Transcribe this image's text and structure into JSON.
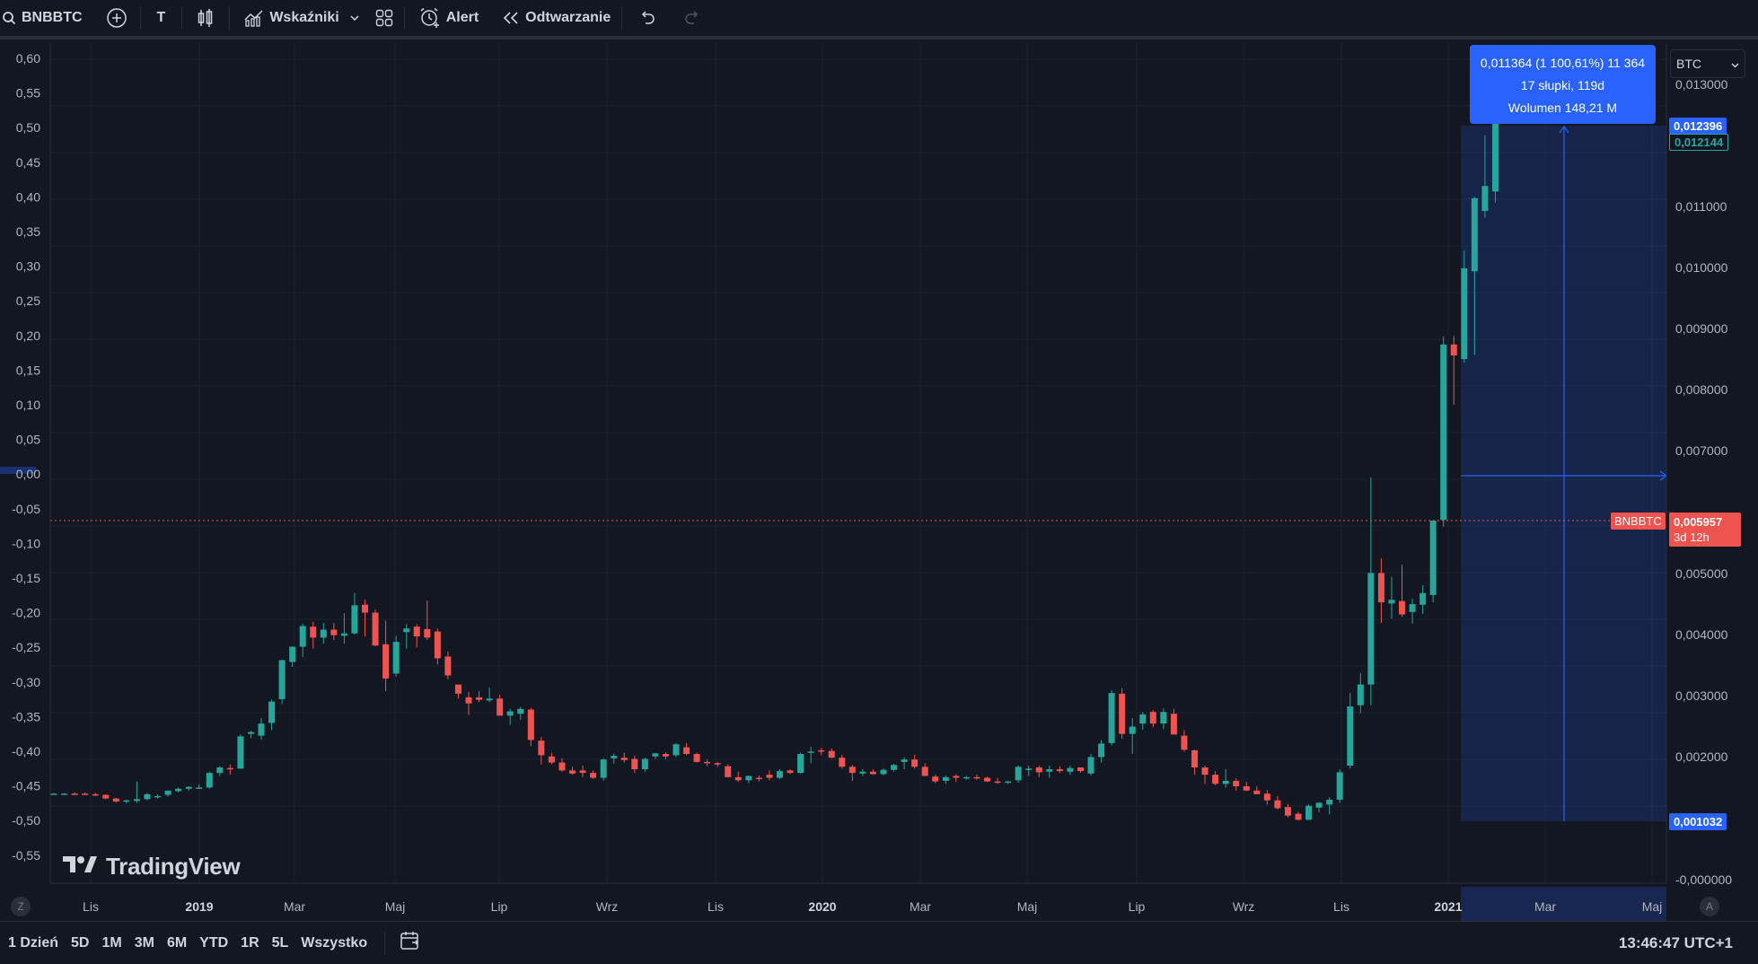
{
  "toolbar": {
    "symbol": "BNBBTC",
    "text_tool": "T",
    "indicators": "Wskaźniki",
    "alert": "Alert",
    "replay": "Odtwarzanie"
  },
  "left_axis": {
    "ticks": [
      "0,60",
      "0,55",
      "0,50",
      "0,45",
      "0,40",
      "0,35",
      "0,30",
      "0,25",
      "0,20",
      "0,15",
      "0,10",
      "0,05",
      "0,00",
      "-0,05",
      "-0,10",
      "-0,15",
      "-0,20",
      "-0,25",
      "-0,30",
      "-0,35",
      "-0,40",
      "-0,45",
      "-0,50",
      "-0,55"
    ]
  },
  "right_axis": {
    "currency": "BTC",
    "ticks": [
      "0,013000",
      "0,011000",
      "0,010000",
      "0,009000",
      "0,008000",
      "0,007000",
      "0,005000",
      "0,004000",
      "0,003000",
      "0,002000",
      "-0,000000"
    ],
    "labels": {
      "top": "0,012396",
      "last": "0,012144",
      "symbol": "BNBBTC",
      "current": "0,005957",
      "countdown": "3d 12h",
      "bottom": "0,001032"
    }
  },
  "measurement": {
    "line1": "0,011364 (1 100,61%) 11 364",
    "line2": "17 słupki, 119d",
    "line3": "Wolumen 148,21 M"
  },
  "time_axis": {
    "labels": [
      "Lis",
      "2019",
      "Mar",
      "Maj",
      "Lip",
      "Wrz",
      "Lis",
      "2020",
      "Mar",
      "Maj",
      "Lip",
      "Wrz",
      "Lis",
      "2021",
      "Mar",
      "Maj"
    ],
    "bold": [
      "2019",
      "2020",
      "2021"
    ],
    "left_button": "Z",
    "right_button": "A"
  },
  "logo_text": "TradingView",
  "bottom_bar": {
    "ranges": [
      "1 Dzień",
      "5D",
      "1M",
      "3M",
      "6M",
      "YTD",
      "1R",
      "5L",
      "Wszystko"
    ],
    "time": "13:46:47 UTC+1"
  },
  "colors": {
    "background": "#131722",
    "up": "#26a69a",
    "down": "#ef5350",
    "accent": "#2962ff",
    "grid": "#1e222d"
  },
  "chart_data": {
    "type": "candlestick",
    "interval": "weekly",
    "symbol": "BNBBTC",
    "y_unit": "BTC",
    "ylim": [
      0,
      0.0135
    ],
    "candles": [
      {
        "o": 0.00147,
        "h": 0.00148,
        "l": 0.00146,
        "c": 0.00147
      },
      {
        "o": 0.00147,
        "h": 0.00148,
        "l": 0.00146,
        "c": 0.00147
      },
      {
        "o": 0.00147,
        "h": 0.00149,
        "l": 0.00146,
        "c": 0.00146
      },
      {
        "o": 0.00147,
        "h": 0.00149,
        "l": 0.00145,
        "c": 0.00146
      },
      {
        "o": 0.00146,
        "h": 0.00148,
        "l": 0.00143,
        "c": 0.00144
      },
      {
        "o": 0.00145,
        "h": 0.00146,
        "l": 0.00138,
        "c": 0.00139
      },
      {
        "o": 0.00139,
        "h": 0.0014,
        "l": 0.00132,
        "c": 0.00134
      },
      {
        "o": 0.00134,
        "h": 0.00137,
        "l": 0.00131,
        "c": 0.00136
      },
      {
        "o": 0.00135,
        "h": 0.00167,
        "l": 0.00132,
        "c": 0.00138
      },
      {
        "o": 0.00138,
        "h": 0.00148,
        "l": 0.00136,
        "c": 0.00146
      },
      {
        "o": 0.00141,
        "h": 0.00146,
        "l": 0.00139,
        "c": 0.00143
      },
      {
        "o": 0.00145,
        "h": 0.00152,
        "l": 0.00142,
        "c": 0.00152
      },
      {
        "o": 0.00151,
        "h": 0.00157,
        "l": 0.00149,
        "c": 0.00155
      },
      {
        "o": 0.00155,
        "h": 0.00159,
        "l": 0.00152,
        "c": 0.00158
      },
      {
        "o": 0.00156,
        "h": 0.00162,
        "l": 0.00155,
        "c": 0.00157
      },
      {
        "o": 0.00157,
        "h": 0.00183,
        "l": 0.00155,
        "c": 0.00181
      },
      {
        "o": 0.00181,
        "h": 0.00192,
        "l": 0.00176,
        "c": 0.0019
      },
      {
        "o": 0.00189,
        "h": 0.00195,
        "l": 0.00178,
        "c": 0.00188
      },
      {
        "o": 0.00188,
        "h": 0.00244,
        "l": 0.00188,
        "c": 0.00241
      },
      {
        "o": 0.00245,
        "h": 0.0025,
        "l": 0.00238,
        "c": 0.00248
      },
      {
        "o": 0.00242,
        "h": 0.00271,
        "l": 0.00235,
        "c": 0.00262
      },
      {
        "o": 0.00263,
        "h": 0.00301,
        "l": 0.00251,
        "c": 0.00298
      },
      {
        "o": 0.00302,
        "h": 0.00367,
        "l": 0.00294,
        "c": 0.00366
      },
      {
        "o": 0.00363,
        "h": 0.00389,
        "l": 0.00355,
        "c": 0.00388
      },
      {
        "o": 0.00388,
        "h": 0.00426,
        "l": 0.00371,
        "c": 0.00422
      },
      {
        "o": 0.00421,
        "h": 0.00429,
        "l": 0.00385,
        "c": 0.00403
      },
      {
        "o": 0.00403,
        "h": 0.00427,
        "l": 0.00393,
        "c": 0.00416
      },
      {
        "o": 0.00416,
        "h": 0.00427,
        "l": 0.00399,
        "c": 0.00407
      },
      {
        "o": 0.00406,
        "h": 0.00443,
        "l": 0.00393,
        "c": 0.0041
      },
      {
        "o": 0.0041,
        "h": 0.00476,
        "l": 0.00408,
        "c": 0.00456
      },
      {
        "o": 0.00457,
        "h": 0.00465,
        "l": 0.00405,
        "c": 0.00444
      },
      {
        "o": 0.00444,
        "h": 0.00449,
        "l": 0.00389,
        "c": 0.0039
      },
      {
        "o": 0.00392,
        "h": 0.00431,
        "l": 0.00315,
        "c": 0.00336
      },
      {
        "o": 0.00344,
        "h": 0.00406,
        "l": 0.00339,
        "c": 0.00396
      },
      {
        "o": 0.00412,
        "h": 0.00425,
        "l": 0.00385,
        "c": 0.00418
      },
      {
        "o": 0.00421,
        "h": 0.00425,
        "l": 0.00387,
        "c": 0.00405
      },
      {
        "o": 0.00417,
        "h": 0.00464,
        "l": 0.00399,
        "c": 0.00403
      },
      {
        "o": 0.00413,
        "h": 0.00418,
        "l": 0.00359,
        "c": 0.00369
      },
      {
        "o": 0.00372,
        "h": 0.0038,
        "l": 0.00335,
        "c": 0.00341
      },
      {
        "o": 0.00326,
        "h": 0.00326,
        "l": 0.00303,
        "c": 0.00311
      },
      {
        "o": 0.00305,
        "h": 0.00314,
        "l": 0.00276,
        "c": 0.00295
      },
      {
        "o": 0.00305,
        "h": 0.00315,
        "l": 0.00297,
        "c": 0.00301
      },
      {
        "o": 0.003,
        "h": 0.00321,
        "l": 0.00297,
        "c": 0.00303
      },
      {
        "o": 0.00303,
        "h": 0.00309,
        "l": 0.00275,
        "c": 0.00275
      },
      {
        "o": 0.00275,
        "h": 0.00286,
        "l": 0.0026,
        "c": 0.00282
      },
      {
        "o": 0.00278,
        "h": 0.00289,
        "l": 0.00268,
        "c": 0.00286
      },
      {
        "o": 0.00285,
        "h": 0.00288,
        "l": 0.00225,
        "c": 0.00235
      },
      {
        "o": 0.00234,
        "h": 0.0024,
        "l": 0.00195,
        "c": 0.0021
      },
      {
        "o": 0.00208,
        "h": 0.00214,
        "l": 0.00195,
        "c": 0.00198
      },
      {
        "o": 0.00198,
        "h": 0.00205,
        "l": 0.00183,
        "c": 0.00185
      },
      {
        "o": 0.00185,
        "h": 0.00191,
        "l": 0.00178,
        "c": 0.0018
      },
      {
        "o": 0.00185,
        "h": 0.00193,
        "l": 0.00174,
        "c": 0.00181
      },
      {
        "o": 0.00181,
        "h": 0.00185,
        "l": 0.00171,
        "c": 0.00173
      },
      {
        "o": 0.00173,
        "h": 0.00205,
        "l": 0.00168,
        "c": 0.00203
      },
      {
        "o": 0.00205,
        "h": 0.00213,
        "l": 0.00196,
        "c": 0.00209
      },
      {
        "o": 0.00206,
        "h": 0.00214,
        "l": 0.00198,
        "c": 0.00202
      },
      {
        "o": 0.00204,
        "h": 0.00209,
        "l": 0.00181,
        "c": 0.00187
      },
      {
        "o": 0.00187,
        "h": 0.00206,
        "l": 0.00183,
        "c": 0.00204
      },
      {
        "o": 0.00208,
        "h": 0.00214,
        "l": 0.00204,
        "c": 0.00213
      },
      {
        "o": 0.00212,
        "h": 0.00215,
        "l": 0.00203,
        "c": 0.00208
      },
      {
        "o": 0.0021,
        "h": 0.0023,
        "l": 0.00207,
        "c": 0.00228
      },
      {
        "o": 0.00223,
        "h": 0.0023,
        "l": 0.0021,
        "c": 0.00212
      },
      {
        "o": 0.00212,
        "h": 0.00214,
        "l": 0.00198,
        "c": 0.00199
      },
      {
        "o": 0.00199,
        "h": 0.00203,
        "l": 0.00192,
        "c": 0.00197
      },
      {
        "o": 0.00197,
        "h": 0.00199,
        "l": 0.00191,
        "c": 0.00195
      },
      {
        "o": 0.00192,
        "h": 0.00195,
        "l": 0.00183,
        "c": 0.00174
      },
      {
        "o": 0.00174,
        "h": 0.00183,
        "l": 0.00166,
        "c": 0.00169
      },
      {
        "o": 0.00169,
        "h": 0.00177,
        "l": 0.00164,
        "c": 0.00176
      },
      {
        "o": 0.00173,
        "h": 0.00177,
        "l": 0.00167,
        "c": 0.00171
      },
      {
        "o": 0.00178,
        "h": 0.00185,
        "l": 0.00169,
        "c": 0.00173
      },
      {
        "o": 0.00173,
        "h": 0.00187,
        "l": 0.00171,
        "c": 0.00184
      },
      {
        "o": 0.00185,
        "h": 0.00187,
        "l": 0.00179,
        "c": 0.00181
      },
      {
        "o": 0.00181,
        "h": 0.00214,
        "l": 0.0018,
        "c": 0.00212
      },
      {
        "o": 0.00214,
        "h": 0.00224,
        "l": 0.00197,
        "c": 0.00216
      },
      {
        "o": 0.00218,
        "h": 0.00222,
        "l": 0.0021,
        "c": 0.00217
      },
      {
        "o": 0.00217,
        "h": 0.00221,
        "l": 0.00205,
        "c": 0.00206
      },
      {
        "o": 0.00206,
        "h": 0.00211,
        "l": 0.00188,
        "c": 0.00191
      },
      {
        "o": 0.00191,
        "h": 0.00194,
        "l": 0.00168,
        "c": 0.00181
      },
      {
        "o": 0.0018,
        "h": 0.00187,
        "l": 0.00176,
        "c": 0.00183
      },
      {
        "o": 0.00183,
        "h": 0.00187,
        "l": 0.00178,
        "c": 0.00179
      },
      {
        "o": 0.00179,
        "h": 0.00189,
        "l": 0.00177,
        "c": 0.00186
      },
      {
        "o": 0.00186,
        "h": 0.00196,
        "l": 0.00183,
        "c": 0.00194
      },
      {
        "o": 0.00199,
        "h": 0.00207,
        "l": 0.00187,
        "c": 0.00203
      },
      {
        "o": 0.00203,
        "h": 0.00211,
        "l": 0.00188,
        "c": 0.00191
      },
      {
        "o": 0.00191,
        "h": 0.00197,
        "l": 0.00176,
        "c": 0.00176
      },
      {
        "o": 0.00175,
        "h": 0.00178,
        "l": 0.00164,
        "c": 0.00167
      },
      {
        "o": 0.00168,
        "h": 0.00177,
        "l": 0.00163,
        "c": 0.00174
      },
      {
        "o": 0.00176,
        "h": 0.00179,
        "l": 0.00166,
        "c": 0.00173
      },
      {
        "o": 0.00173,
        "h": 0.00176,
        "l": 0.0017,
        "c": 0.00174
      },
      {
        "o": 0.00174,
        "h": 0.00178,
        "l": 0.0017,
        "c": 0.00173
      },
      {
        "o": 0.00173,
        "h": 0.00175,
        "l": 0.00166,
        "c": 0.00167
      },
      {
        "o": 0.00167,
        "h": 0.00173,
        "l": 0.00163,
        "c": 0.00166
      },
      {
        "o": 0.00165,
        "h": 0.00168,
        "l": 0.00163,
        "c": 0.00167
      },
      {
        "o": 0.00169,
        "h": 0.00193,
        "l": 0.00165,
        "c": 0.00191
      },
      {
        "o": 0.00187,
        "h": 0.00193,
        "l": 0.00176,
        "c": 0.00188
      },
      {
        "o": 0.0019,
        "h": 0.00193,
        "l": 0.00174,
        "c": 0.00182
      },
      {
        "o": 0.00183,
        "h": 0.00193,
        "l": 0.00173,
        "c": 0.00187
      },
      {
        "o": 0.00187,
        "h": 0.00192,
        "l": 0.00181,
        "c": 0.00184
      },
      {
        "o": 0.00183,
        "h": 0.00193,
        "l": 0.00178,
        "c": 0.00189
      },
      {
        "o": 0.0019,
        "h": 0.0019,
        "l": 0.00181,
        "c": 0.00184
      },
      {
        "o": 0.0018,
        "h": 0.00212,
        "l": 0.00177,
        "c": 0.00207
      },
      {
        "o": 0.00207,
        "h": 0.00235,
        "l": 0.00198,
        "c": 0.00229
      },
      {
        "o": 0.0023,
        "h": 0.00317,
        "l": 0.00226,
        "c": 0.00312
      },
      {
        "o": 0.00311,
        "h": 0.0032,
        "l": 0.00237,
        "c": 0.00245
      },
      {
        "o": 0.00245,
        "h": 0.00271,
        "l": 0.00212,
        "c": 0.00257
      },
      {
        "o": 0.00262,
        "h": 0.00281,
        "l": 0.00252,
        "c": 0.00277
      },
      {
        "o": 0.00281,
        "h": 0.00284,
        "l": 0.00256,
        "c": 0.00262
      },
      {
        "o": 0.00262,
        "h": 0.00287,
        "l": 0.00253,
        "c": 0.00281
      },
      {
        "o": 0.00278,
        "h": 0.00286,
        "l": 0.00246,
        "c": 0.00244
      },
      {
        "o": 0.00242,
        "h": 0.00251,
        "l": 0.00216,
        "c": 0.00219
      },
      {
        "o": 0.00218,
        "h": 0.00219,
        "l": 0.00178,
        "c": 0.0019
      },
      {
        "o": 0.0019,
        "h": 0.00193,
        "l": 0.00163,
        "c": 0.00178
      },
      {
        "o": 0.00178,
        "h": 0.00184,
        "l": 0.00161,
        "c": 0.00163
      },
      {
        "o": 0.00163,
        "h": 0.00187,
        "l": 0.00157,
        "c": 0.00168
      },
      {
        "o": 0.00168,
        "h": 0.00172,
        "l": 0.00152,
        "c": 0.00159
      },
      {
        "o": 0.00159,
        "h": 0.00166,
        "l": 0.00151,
        "c": 0.00152
      },
      {
        "o": 0.00152,
        "h": 0.00159,
        "l": 0.00146,
        "c": 0.00146
      },
      {
        "o": 0.00147,
        "h": 0.00153,
        "l": 0.00129,
        "c": 0.00136
      },
      {
        "o": 0.00136,
        "h": 0.00143,
        "l": 0.00121,
        "c": 0.00123
      },
      {
        "o": 0.00125,
        "h": 0.0013,
        "l": 0.00108,
        "c": 0.00111
      },
      {
        "o": 0.00114,
        "h": 0.00117,
        "l": 0.00103,
        "c": 0.00104
      },
      {
        "o": 0.00104,
        "h": 0.0013,
        "l": 0.00104,
        "c": 0.00127
      },
      {
        "o": 0.00124,
        "h": 0.00133,
        "l": 0.00117,
        "c": 0.00132
      },
      {
        "o": 0.00129,
        "h": 0.00141,
        "l": 0.00113,
        "c": 0.00137
      },
      {
        "o": 0.00137,
        "h": 0.00187,
        "l": 0.00132,
        "c": 0.00182
      },
      {
        "o": 0.00193,
        "h": 0.00312,
        "l": 0.00188,
        "c": 0.0029
      },
      {
        "o": 0.00292,
        "h": 0.00345,
        "l": 0.00279,
        "c": 0.00326
      },
      {
        "o": 0.00326,
        "h": 0.00666,
        "l": 0.00292,
        "c": 0.00509
      },
      {
        "o": 0.00509,
        "h": 0.00533,
        "l": 0.00427,
        "c": 0.00461
      },
      {
        "o": 0.00459,
        "h": 0.00503,
        "l": 0.00434,
        "c": 0.00465
      },
      {
        "o": 0.00463,
        "h": 0.00522,
        "l": 0.00437,
        "c": 0.00441
      },
      {
        "o": 0.00445,
        "h": 0.00467,
        "l": 0.00426,
        "c": 0.00458
      },
      {
        "o": 0.00457,
        "h": 0.00489,
        "l": 0.00442,
        "c": 0.00476
      },
      {
        "o": 0.00473,
        "h": 0.00595,
        "l": 0.00461,
        "c": 0.00595
      },
      {
        "o": 0.00596,
        "h": 0.00897,
        "l": 0.00585,
        "c": 0.00884
      },
      {
        "o": 0.00884,
        "h": 0.00898,
        "l": 0.00785,
        "c": 0.00866
      },
      {
        "o": 0.0086,
        "h": 0.01038,
        "l": 0.00854,
        "c": 0.01009
      },
      {
        "o": 0.01004,
        "h": 0.01126,
        "l": 0.00867,
        "c": 0.01124
      },
      {
        "o": 0.01103,
        "h": 0.01227,
        "l": 0.01092,
        "c": 0.01144
      },
      {
        "o": 0.01135,
        "h": 0.01324,
        "l": 0.01117,
        "c": 0.01306
      }
    ]
  }
}
